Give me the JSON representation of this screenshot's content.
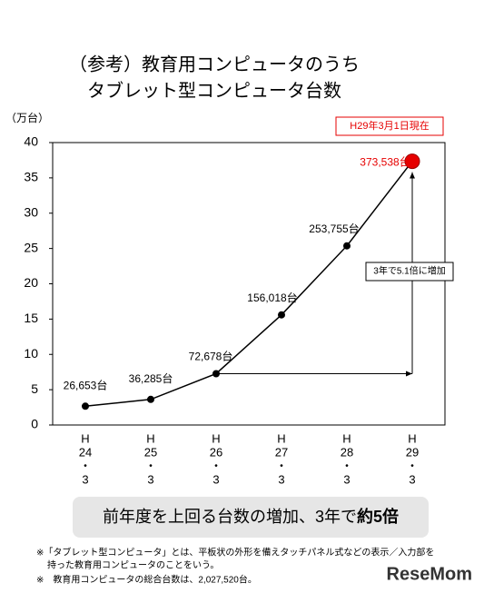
{
  "chart_data": {
    "type": "line",
    "title": [
      "（参考）教育用コンピュータのうち",
      "タブレット型コンピュータ台数"
    ],
    "y_label": "（万台）",
    "categories": [
      [
        "H",
        "24",
        "・",
        "3"
      ],
      [
        "H",
        "25",
        "・",
        "3"
      ],
      [
        "H",
        "26",
        "・",
        "3"
      ],
      [
        "H",
        "27",
        "・",
        "3"
      ],
      [
        "H",
        "28",
        "・",
        "3"
      ],
      [
        "H",
        "29",
        "・",
        "3"
      ]
    ],
    "series": [
      {
        "name": "タブレット型コンピュータ台数",
        "color": "#000000",
        "values": [
          2.6653,
          3.6285,
          7.2678,
          15.6018,
          25.3755,
          37.3538
        ],
        "value_labels": [
          "26,653台",
          "36,285台",
          "72,678台",
          "156,018台",
          "253,755台",
          "373,538台"
        ],
        "marker_colors": [
          "#000000",
          "#000000",
          "#000000",
          "#000000",
          "#000000",
          "#e60000"
        ]
      }
    ],
    "ylim": [
      0,
      40
    ],
    "yticks": [
      0,
      5,
      10,
      15,
      20,
      25,
      30,
      35,
      40
    ],
    "annotations": {
      "date_note": "H29年3月1日現在",
      "growth_note": "3年で5.1倍に増加"
    },
    "banner": {
      "text": "前年度を上回る台数の増加、3年で",
      "emphasis": "約5倍"
    },
    "footnotes": [
      [
        "※「タブレット型コンピュータ」とは、平板状の外形を備えタッチパネル式などの表示／入力部を",
        "持った教育用コンピュータのことをいう。"
      ],
      [
        "※　教育用コンピュータの総合台数は、2,027,520台。"
      ]
    ],
    "logo": "ReseMom"
  }
}
